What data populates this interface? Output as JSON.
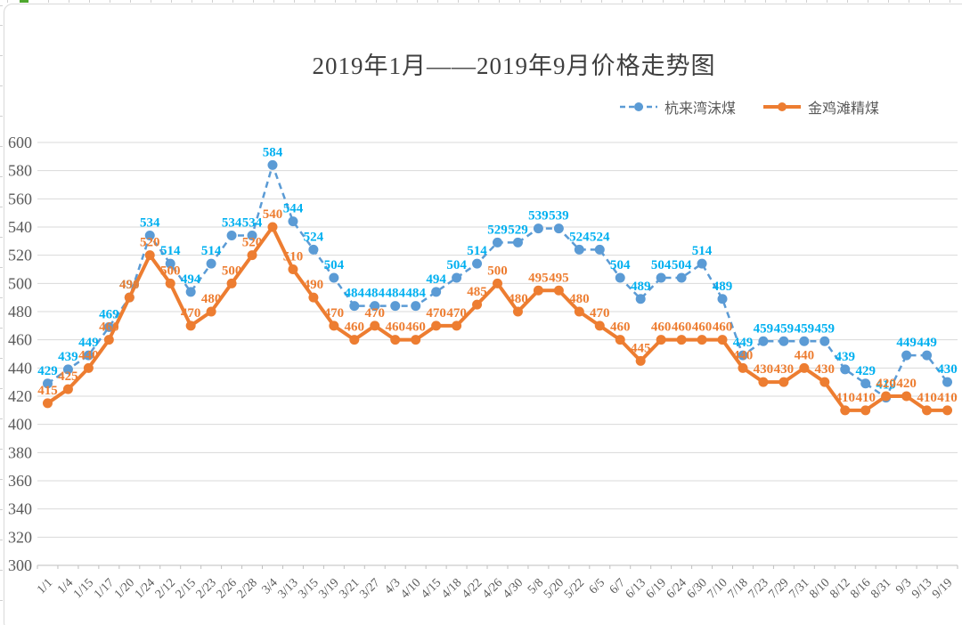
{
  "chart_data": {
    "type": "line",
    "title": "2019年1月——2019年9月价格走势图",
    "legend_position": "top-right",
    "grid": true,
    "ylim": [
      300,
      600
    ],
    "ytick_step": 20,
    "grid_color": "#d9d9d9",
    "axis_color": "#bfbfbf",
    "tick_label_color": "#595959",
    "title_color": "#3f3f3f",
    "categories": [
      "1/1",
      "1/4",
      "1/15",
      "1/17",
      "1/20",
      "1/24",
      "2/12",
      "2/15",
      "2/23",
      "2/26",
      "2/28",
      "3/4",
      "3/13",
      "3/15",
      "3/19",
      "3/21",
      "3/27",
      "4/3",
      "4/10",
      "4/15",
      "4/18",
      "4/22",
      "4/26",
      "4/30",
      "5/8",
      "5/20",
      "5/22",
      "6/5",
      "6/7",
      "6/13",
      "6/19",
      "6/24",
      "6/30",
      "7/10",
      "7/18",
      "7/23",
      "7/29",
      "7/31",
      "8/10",
      "8/12",
      "8/16",
      "8/31",
      "9/3",
      "9/13",
      "9/19"
    ],
    "series": [
      {
        "name": "杭来湾沫煤",
        "color": "#5b9bd5",
        "label_color": "#00b0f0",
        "style": "dashed",
        "values": [
          429,
          439,
          449,
          469,
          490,
          534,
          514,
          494,
          514,
          534,
          534,
          584,
          544,
          524,
          504,
          484,
          484,
          484,
          484,
          494,
          504,
          514,
          529,
          529,
          539,
          539,
          524,
          524,
          504,
          489,
          504,
          504,
          514,
          489,
          449,
          459,
          459,
          459,
          459,
          439,
          429,
          419,
          449,
          449,
          430
        ]
      },
      {
        "name": "金鸡滩精煤",
        "color": "#ed7d31",
        "label_color": "#ed7d31",
        "style": "solid",
        "values": [
          415,
          425,
          440,
          460,
          490,
          520,
          500,
          470,
          480,
          500,
          520,
          540,
          510,
          490,
          470,
          460,
          470,
          460,
          460,
          470,
          470,
          485,
          500,
          480,
          495,
          495,
          480,
          470,
          460,
          445,
          460,
          460,
          460,
          460,
          440,
          430,
          430,
          440,
          430,
          410,
          410,
          420,
          420,
          410,
          410
        ]
      }
    ]
  }
}
